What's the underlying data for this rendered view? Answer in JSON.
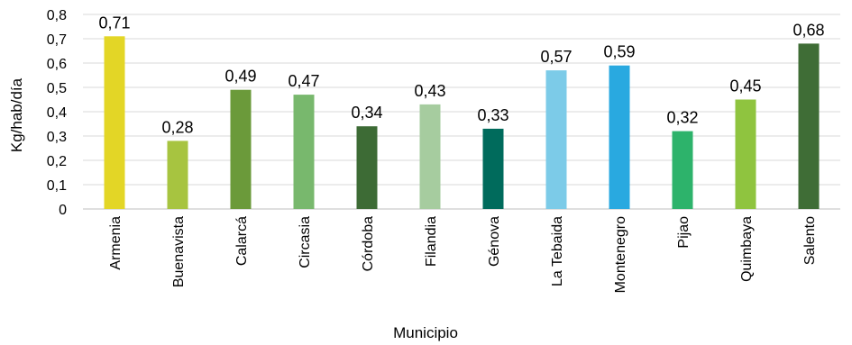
{
  "chart_data": {
    "type": "bar",
    "title": "",
    "xlabel": "Municipio",
    "ylabel": "Kg/hab/día",
    "ylim": [
      0,
      0.8
    ],
    "yticks": [
      0,
      0.1,
      0.2,
      0.3,
      0.4,
      0.5,
      0.6,
      0.7,
      0.8
    ],
    "ytick_labels": [
      "0",
      "0,1",
      "0,2",
      "0,3",
      "0,4",
      "0,5",
      "0,6",
      "0,7",
      "0,8"
    ],
    "grid": true,
    "legend": "none",
    "categories": [
      "Armenia",
      "Buenavista",
      "Calarcá",
      "Circasia",
      "Córdoba",
      "Filandia",
      "Génova",
      "La Tebaida",
      "Montenegro",
      "Pijao",
      "Quimbaya",
      "Salento"
    ],
    "values": [
      0.71,
      0.28,
      0.49,
      0.47,
      0.34,
      0.43,
      0.33,
      0.57,
      0.59,
      0.32,
      0.45,
      0.68
    ],
    "value_labels": [
      "0,71",
      "0,28",
      "0,49",
      "0,47",
      "0,34",
      "0,43",
      "0,33",
      "0,57",
      "0,59",
      "0,32",
      "0,45",
      "0,68"
    ],
    "colors": [
      "#e3d626",
      "#a7c440",
      "#6b9a3a",
      "#78b86d",
      "#3d6b35",
      "#a6cc9f",
      "#006b5c",
      "#7ccbe8",
      "#29a9e0",
      "#2db36b",
      "#8fc43f",
      "#3f6d36"
    ]
  }
}
